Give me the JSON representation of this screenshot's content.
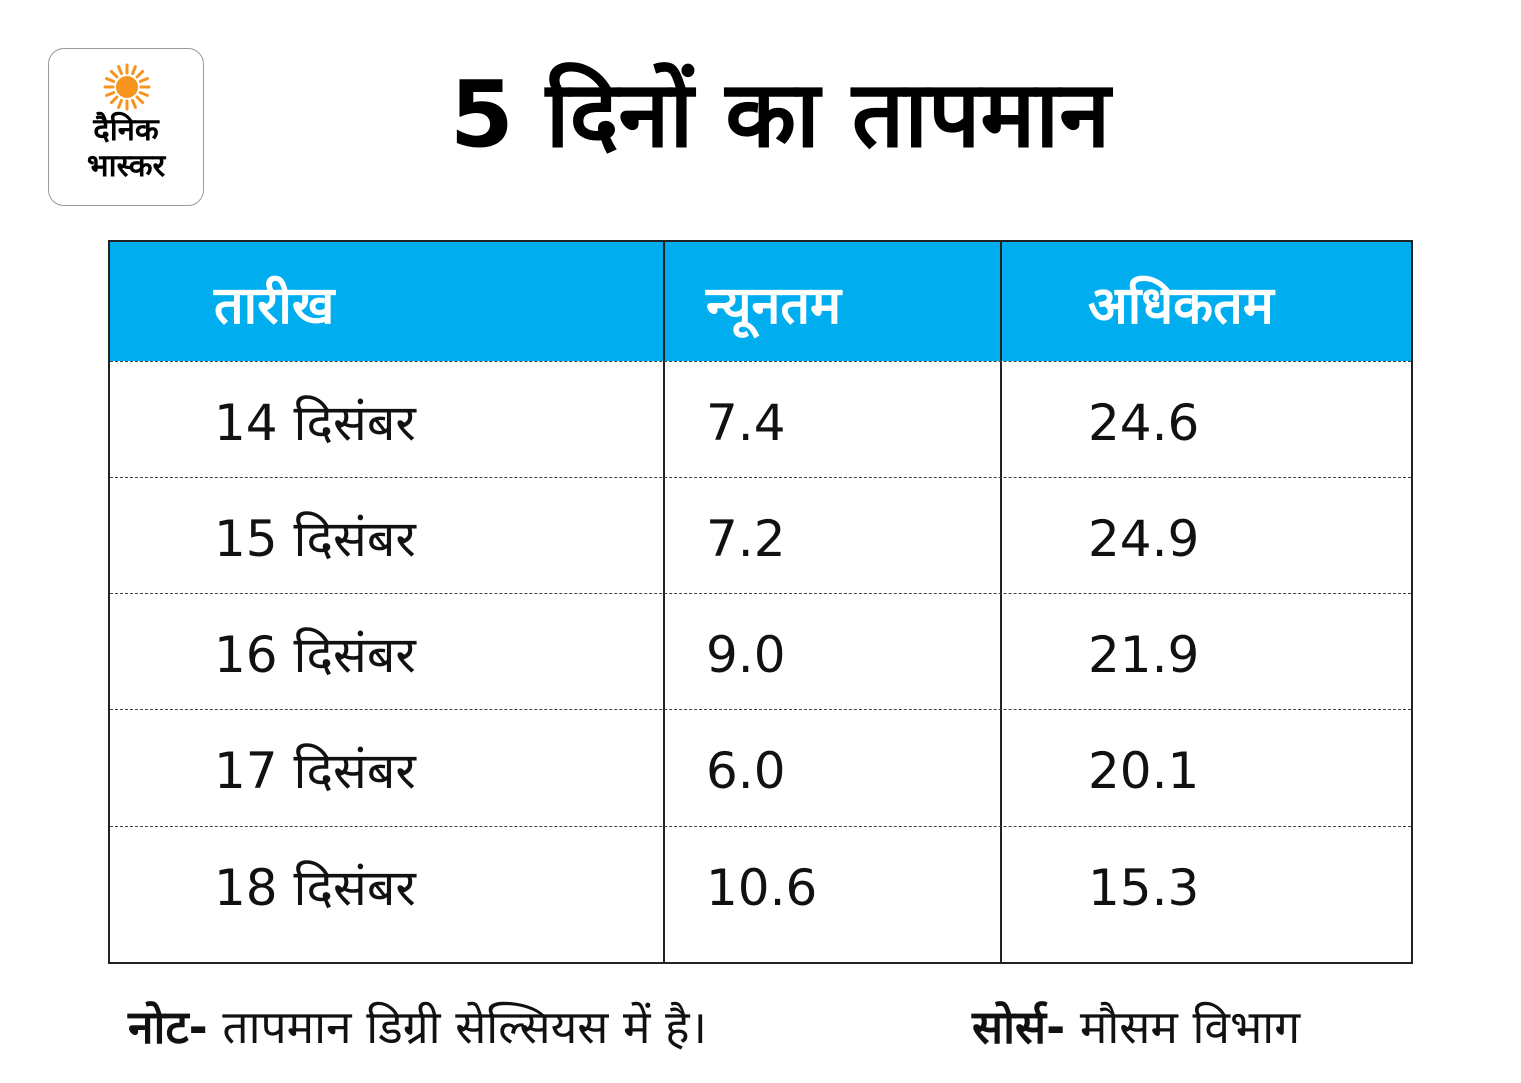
{
  "logo": {
    "line1": "दैनिक",
    "line2": "भास्कर",
    "sun_color": "#f7941d"
  },
  "title": "5 दिनों का तापमान",
  "chart_data": {
    "type": "table",
    "columns": [
      "तारीख",
      "न्यूनतम",
      "अधिकतम"
    ],
    "rows": [
      {
        "date": "14 दिसंबर",
        "min": "7.4",
        "max": "24.6"
      },
      {
        "date": "15 दिसंबर",
        "min": "7.2",
        "max": "24.9"
      },
      {
        "date": "16 दिसंबर",
        "min": "9.0",
        "max": "21.9"
      },
      {
        "date": "17 दिसंबर",
        "min": "6.0",
        "max": "20.1"
      },
      {
        "date": "18 दिसंबर",
        "min": "10.6",
        "max": "15.3"
      }
    ],
    "header_color": "#00aeef"
  },
  "footer": {
    "note_label": "नोट-",
    "note_text": " तापमान डिग्री सेल्सियस में है।",
    "source_label": "सोर्स-",
    "source_text": " मौसम विभाग"
  }
}
